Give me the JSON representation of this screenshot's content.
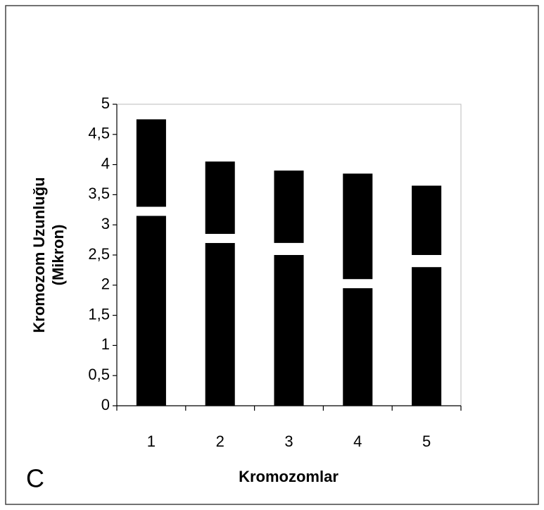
{
  "chart_data": {
    "type": "bar",
    "stacked": true,
    "annotation": "C",
    "xlabel": "Kromozomlar",
    "ylabel": [
      "Kromozom Uzunluğu",
      "(Mikron)"
    ],
    "categories": [
      "1",
      "2",
      "3",
      "4",
      "5"
    ],
    "series": [
      {
        "color": "#000000",
        "values": [
          3.15,
          2.7,
          2.5,
          1.95,
          2.3
        ]
      },
      {
        "color": "#ffffff",
        "values": [
          0.15,
          0.15,
          0.2,
          0.15,
          0.2
        ]
      },
      {
        "color": "#000000",
        "values": [
          1.45,
          1.2,
          1.2,
          1.75,
          1.15
        ]
      }
    ],
    "ylim": [
      0,
      5
    ],
    "yticks": [
      0,
      {
        "value": 0.5,
        "label": "0,5"
      },
      1,
      {
        "value": 1.5,
        "label": "1,5"
      },
      2,
      {
        "value": 2.5,
        "label": "2,5"
      },
      3,
      {
        "value": 3.5,
        "label": "3,5"
      },
      4,
      {
        "value": 4.5,
        "label": "4,5"
      },
      5
    ],
    "grid": false
  }
}
